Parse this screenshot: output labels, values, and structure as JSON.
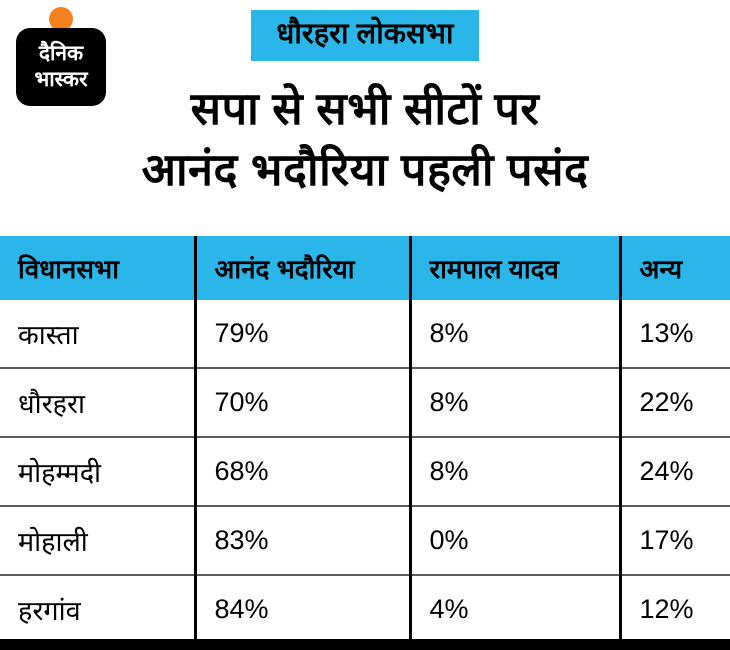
{
  "brand": {
    "logo_line1": "दैनिक",
    "logo_line2": "भास्कर"
  },
  "header": {
    "badge": "धौरहरा लोकसभा",
    "title_line1": "सपा से सभी सीटों पर",
    "title_line2": "आनंद भदौरिया पहली पसंद"
  },
  "colors": {
    "accent_cyan": "#2bb6e9",
    "logo_orange": "#f5821f",
    "text_black": "#000000",
    "footer_black": "#000000"
  },
  "table": {
    "columns": [
      "विधानसभा",
      "आनंद भदौरिया",
      "रामपाल यादव",
      "अन्य"
    ],
    "rows": [
      [
        "कास्ता",
        "79%",
        "8%",
        "13%"
      ],
      [
        "धौरहरा",
        "70%",
        "8%",
        "22%"
      ],
      [
        "मोहम्मदी",
        "68%",
        "8%",
        "24%"
      ],
      [
        "मोहाली",
        "83%",
        "0%",
        "17%"
      ],
      [
        "हरगांव",
        "84%",
        "4%",
        "12%"
      ]
    ]
  },
  "chart_data": {
    "type": "table",
    "title": "सपा से सभी सीटों पर आनंद भदौरिया पहली पसंद",
    "subtitle": "धौरहरा लोकसभा",
    "columns": [
      "विधानसभा",
      "आनंद भदौरिया",
      "रामपाल यादव",
      "अन्य"
    ],
    "rows": [
      {
        "vidhansabha": "कास्ता",
        "anand_bhadauria": 79,
        "rampal_yadav": 8,
        "anya": 13
      },
      {
        "vidhansabha": "धौरहरा",
        "anand_bhadauria": 70,
        "rampal_yadav": 8,
        "anya": 22
      },
      {
        "vidhansabha": "मोहम्मदी",
        "anand_bhadauria": 68,
        "rampal_yadav": 8,
        "anya": 24
      },
      {
        "vidhansabha": "मोहाली",
        "anand_bhadauria": 83,
        "rampal_yadav": 0,
        "anya": 17
      },
      {
        "vidhansabha": "हरगांव",
        "anand_bhadauria": 84,
        "rampal_yadav": 4,
        "anya": 12
      }
    ],
    "unit": "%",
    "legend_position": "none",
    "grid": "table-borders"
  }
}
